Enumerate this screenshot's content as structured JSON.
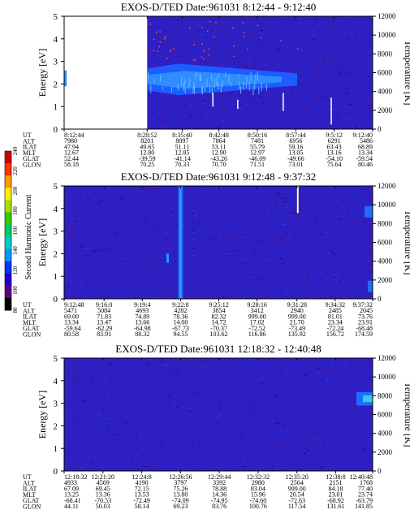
{
  "chart_data": [
    {
      "type": "heatmap",
      "title": "EXOS-D/TED   Date:961031   8:12:44 - 9:12:40",
      "ylabel": "Energy [eV]",
      "ylabel_right": "Temperature [K]",
      "ylim": [
        0,
        5
      ],
      "ylim_right": [
        0,
        12000
      ],
      "yticks": [
        "0",
        "1",
        "2",
        "3",
        "4",
        "5"
      ],
      "yticks_right": [
        "0",
        "2000",
        "4000",
        "6000",
        "8000",
        "10000",
        "12000"
      ],
      "time_ticks": [
        "8:12:44",
        "8:28:52",
        "8:35:40",
        "8:42:48",
        "8:50:16",
        "8:57:44",
        "9:5:12",
        "9:12:40"
      ],
      "orbit_table": {
        "labels": [
          "UT",
          "ALT",
          "ILAT",
          "MLT",
          "GLAT",
          "GLON"
        ],
        "rows": [
          [
            "7980",
            "8201",
            "8097",
            "7864",
            "7481",
            "6956",
            "6291",
            "5486"
          ],
          [
            "47.94",
            "49.65",
            "51.11",
            "53.11",
            "55.79",
            "59.16",
            "63.43",
            "68.89"
          ],
          [
            "12.67",
            "12.80",
            "12.85",
            "12.90",
            "12.97",
            "13.05",
            "13.16",
            "13.34"
          ],
          [
            "52.44",
            "-39.59",
            "-41.14",
            "-43.26",
            "-46.09",
            "-49.66",
            "-54.10",
            "-59.54"
          ],
          [
            "58.18",
            "70.25",
            "70.33",
            "70.70",
            "71.51",
            "73.01",
            "75.64",
            "80.46"
          ]
        ]
      },
      "features": {
        "data_gap_time": [
          "8:12:44",
          "8:28:52"
        ],
        "enhancement_band_energy": [
          1.5,
          2.9
        ],
        "enhancement_time": [
          "8:28:52",
          "8:58:00"
        ]
      }
    },
    {
      "type": "heatmap",
      "title": "EXOS-D/TED   Date:961031   9:12:48 - 9:37:32",
      "ylabel": "Energy [eV]",
      "ylabel_right": "Temperature [K]",
      "ylim": [
        0,
        5
      ],
      "ylim_right": [
        0,
        12000
      ],
      "yticks": [
        "0",
        "1",
        "2",
        "3",
        "4",
        "5"
      ],
      "yticks_right": [
        "0",
        "2000",
        "4000",
        "6000",
        "8000",
        "10000",
        "12000"
      ],
      "time_ticks": [
        "9:12:48",
        "9:16:0",
        "9:19:4",
        "9:22:8",
        "9:25:12",
        "9:28:16",
        "9:31:28",
        "9:34:32",
        "9:37:32"
      ],
      "orbit_table": {
        "labels": [
          "UT",
          "ALT",
          "ILAT",
          "MLT",
          "GLAT",
          "GLON"
        ],
        "rows": [
          [
            "5471",
            "5084",
            "4693",
            "4282",
            "3854",
            "3412",
            "2940",
            "2485",
            "2045"
          ],
          [
            "69.00",
            "71.83",
            "74.89",
            "78.36",
            "82.32",
            "999.00",
            "999.00",
            "81.01",
            "73.76"
          ],
          [
            "13.34",
            "13.47",
            "13.66",
            "14.00",
            "14.72",
            "17.02",
            "21.70",
            "23.34",
            "23.91"
          ],
          [
            "-59.64",
            "-62.29",
            "-64.98",
            "-67.73",
            "-70.37",
            "-72.52",
            "-73.49",
            "-72.24",
            "-68.48"
          ],
          [
            "80.58",
            "83.91",
            "88.32",
            "94.55",
            "103.62",
            "116.86",
            "135.92",
            "156.72",
            "174.59"
          ]
        ]
      },
      "features": {
        "spike_time": "9:22:8",
        "spike_time_2": "9:31:28"
      }
    },
    {
      "type": "heatmap",
      "title": "EXOS-D/TED   Date:961031   12:18:32 - 12:40:48",
      "ylabel": "Energy [eV]",
      "ylabel_right": "Temperature [K]",
      "ylim": [
        0,
        5
      ],
      "ylim_right": [
        0,
        12000
      ],
      "yticks": [
        "0",
        "1",
        "2",
        "3",
        "4",
        "5"
      ],
      "yticks_right": [
        "0",
        "2000",
        "4000",
        "6000",
        "8000",
        "10000",
        "12000"
      ],
      "time_ticks": [
        "12:18:32",
        "12:21:20",
        "12:24:8",
        "12:26:56",
        "12:29:44",
        "12:32:32",
        "12:35:20",
        "12:38:8",
        "12:40:48"
      ],
      "orbit_table": {
        "labels": [
          "UT",
          "ALT",
          "ILAT",
          "MLT",
          "GLAT",
          "GLON"
        ],
        "rows": [
          [
            "4933",
            "4569",
            "4190",
            "3797",
            "3392",
            "2980",
            "2564",
            "2151",
            "1768"
          ],
          [
            "67.09",
            "69.45",
            "72.15",
            "75.26",
            "78.88",
            "83.04",
            "999.00",
            "84.18",
            "77.40"
          ],
          [
            "13.25",
            "13.36",
            "13.53",
            "13.80",
            "14.36",
            "15.96",
            "20.54",
            "23.01",
            "23.74"
          ],
          [
            "-68.41",
            "-70.53",
            "-72.49",
            "-74.09",
            "-74.95",
            "-74.60",
            "-72.63",
            "-68.92",
            "-63.79"
          ],
          [
            "44.11",
            "50.03",
            "58.14",
            "69.23",
            "83.76",
            "100.76",
            "117.54",
            "131.61",
            "141.85"
          ]
        ]
      }
    }
  ],
  "colorbar": {
    "label": "Second Harmonic Current",
    "ticks": [
      "80",
      "100",
      "120",
      "140",
      "160",
      "180",
      "200",
      "220",
      "240"
    ],
    "colors": [
      "#000000",
      "#5b0080",
      "#2200cc",
      "#0033ff",
      "#0099ff",
      "#00cccc",
      "#00cc66",
      "#33cc00",
      "#aadd00",
      "#ffee00",
      "#ff9900",
      "#ff3300",
      "#cc0000"
    ]
  }
}
